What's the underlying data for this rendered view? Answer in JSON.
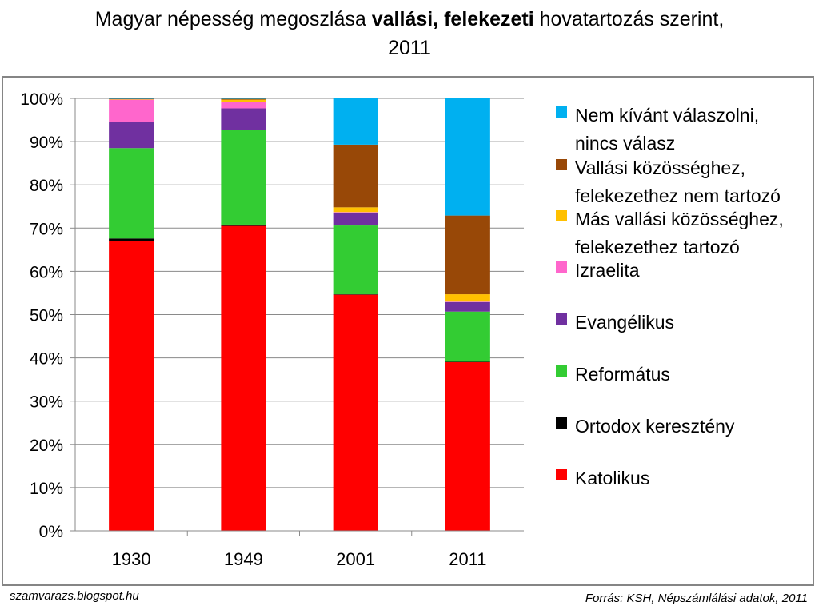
{
  "title": {
    "part1": "Magyar népesség megoszlása ",
    "bold": "vallási, felekezeti",
    "part2": " hovatartozás szerint,",
    "line2": "2011"
  },
  "footer": {
    "left": "szamvarazs.blogspot.hu",
    "right": "Forrás: KSH, Népszámlálási adatok, 2011"
  },
  "chart_data": {
    "type": "bar",
    "stacked": true,
    "percent": true,
    "title": "Magyar népesség megoszlása vallási, felekezeti hovatartozás szerint, 2011",
    "categories": [
      "1930",
      "1949",
      "2001",
      "2011"
    ],
    "ylim": [
      0,
      100
    ],
    "yticks": [
      "0%",
      "10%",
      "20%",
      "30%",
      "40%",
      "50%",
      "60%",
      "70%",
      "80%",
      "90%",
      "100%"
    ],
    "grid": true,
    "legend_position": "right",
    "series": [
      {
        "name": "Katolikus",
        "color": "#ff0000",
        "values": [
          67.1,
          70.5,
          54.6,
          39.0
        ]
      },
      {
        "name": "Ortodox keresztény",
        "color": "#000000",
        "values": [
          0.5,
          0.3,
          0.1,
          0.1
        ]
      },
      {
        "name": "Református",
        "color": "#33cc33",
        "values": [
          20.9,
          21.9,
          15.9,
          11.6
        ]
      },
      {
        "name": "Evangélikus",
        "color": "#7030a0",
        "values": [
          6.1,
          5.0,
          3.0,
          2.2
        ]
      },
      {
        "name": "Izraelita",
        "color": "#ff66cc",
        "values": [
          5.1,
          1.5,
          0.1,
          0.1
        ]
      },
      {
        "name": "Más vallási közösséghez, felekezethez tartozó",
        "color": "#ffc000",
        "values": [
          0.1,
          0.5,
          1.1,
          1.7
        ]
      },
      {
        "name": "Vallási közösséghez, felekezethez nem tartozó",
        "color": "#984807",
        "values": [
          0.1,
          0.2,
          14.5,
          18.2
        ]
      },
      {
        "name": "Nem kívánt válaszolni, nincs válasz",
        "color": "#00b0f0",
        "values": [
          0.1,
          0.1,
          10.7,
          27.1
        ]
      }
    ],
    "legend": [
      {
        "lines": [
          "Nem kívánt válaszolni,",
          "nincs válasz"
        ],
        "color": "#00b0f0"
      },
      {
        "lines": [
          "Vallási közösséghez,",
          "felekezethez nem tartozó"
        ],
        "color": "#984807"
      },
      {
        "lines": [
          "Más vallási közösséghez,",
          "felekezethez tartozó"
        ],
        "color": "#ffc000"
      },
      {
        "lines": [
          "Izraelita"
        ],
        "color": "#ff66cc"
      },
      {
        "lines": [
          "Evangélikus"
        ],
        "color": "#7030a0"
      },
      {
        "lines": [
          "Református"
        ],
        "color": "#33cc33"
      },
      {
        "lines": [
          "Ortodox keresztény"
        ],
        "color": "#000000"
      },
      {
        "lines": [
          "Katolikus"
        ],
        "color": "#ff0000"
      }
    ]
  }
}
